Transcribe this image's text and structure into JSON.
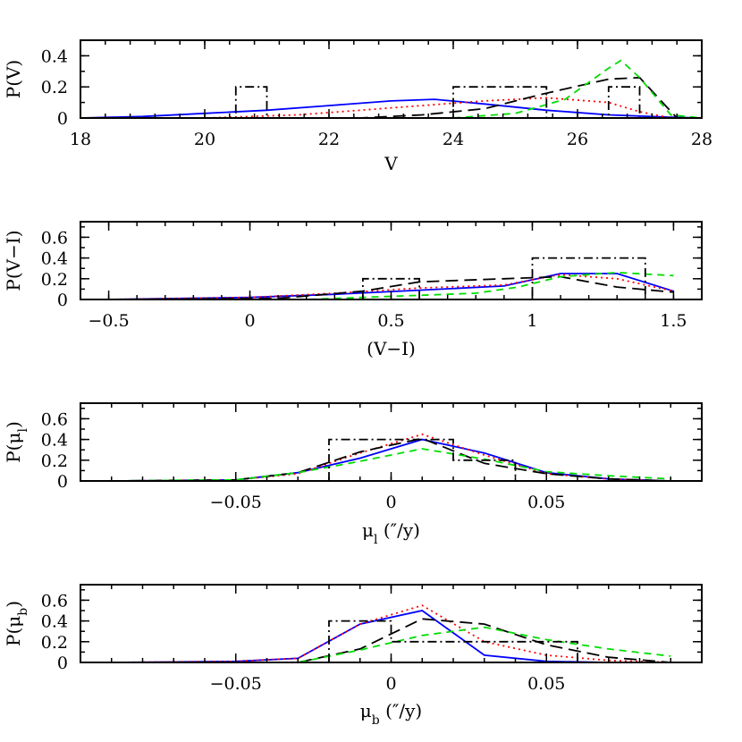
{
  "chart_data": [
    {
      "type": "line",
      "xlabel": "V",
      "ylabel": "P(V)",
      "xlim": [
        18,
        28
      ],
      "ylim": [
        0,
        0.5
      ],
      "xticks": [
        18,
        20,
        22,
        24,
        26,
        28
      ],
      "xtick_labels": [
        "18",
        "20",
        "22",
        "24",
        "26",
        "28"
      ],
      "yticks": [
        0,
        0.2,
        0.4
      ],
      "ytick_labels": [
        "0",
        "0.2",
        "0.4"
      ],
      "series": [
        {
          "color": "#0000ff",
          "dash": "solid",
          "x": [
            18.0,
            19.0,
            20.0,
            21.0,
            22.0,
            23.0,
            23.7,
            24.5,
            25.5,
            26.5,
            27.5,
            28.0
          ],
          "y": [
            0.0,
            0.01,
            0.03,
            0.05,
            0.08,
            0.11,
            0.12,
            0.09,
            0.05,
            0.02,
            0.005,
            0.0
          ]
        },
        {
          "color": "#ff0000",
          "dash": "dotted",
          "x": [
            18.5,
            20.0,
            21.5,
            22.5,
            23.5,
            24.5,
            25.5,
            26.5,
            27.0,
            27.5
          ],
          "y": [
            0.0,
            0.0,
            0.02,
            0.05,
            0.08,
            0.11,
            0.13,
            0.1,
            0.04,
            0.0
          ]
        },
        {
          "color": "#000000",
          "dash": "longdash",
          "x": [
            18.5,
            22.5,
            23.5,
            24.5,
            25.5,
            26.5,
            27.0,
            27.6
          ],
          "y": [
            0.0,
            0.0,
            0.02,
            0.06,
            0.16,
            0.25,
            0.26,
            0.0
          ]
        },
        {
          "color": "#00dd00",
          "dash": "dash",
          "x": [
            24.0,
            25.0,
            25.8,
            26.5,
            26.7,
            27.0,
            27.5,
            28.0
          ],
          "y": [
            0.0,
            0.03,
            0.12,
            0.32,
            0.37,
            0.26,
            0.02,
            0.0
          ]
        },
        {
          "color": "#000000",
          "dash": "dashdot",
          "step": true,
          "x": [
            20.0,
            20.5,
            20.5,
            21.0,
            21.0,
            24.0,
            24.0,
            25.5,
            25.5,
            26.5,
            26.5,
            27.0,
            27.0
          ],
          "y": [
            0.0,
            0.0,
            0.2,
            0.2,
            0.0,
            0.0,
            0.2,
            0.2,
            0.0,
            0.0,
            0.2,
            0.2,
            0.0
          ]
        }
      ]
    },
    {
      "type": "line",
      "xlabel": "(V−I)",
      "ylabel": "P(V−I)",
      "xlim": [
        -0.6,
        1.6
      ],
      "ylim": [
        0,
        0.75
      ],
      "xticks": [
        -0.5,
        0,
        0.5,
        1,
        1.5
      ],
      "xtick_labels": [
        "−0.5",
        "0",
        "0.5",
        "1",
        "1.5"
      ],
      "yticks": [
        0,
        0.2,
        0.4,
        0.6
      ],
      "ytick_labels": [
        "0",
        "0.2",
        "0.4",
        "0.6"
      ],
      "series": [
        {
          "color": "#0000ff",
          "dash": "solid",
          "x": [
            -0.5,
            0.0,
            0.3,
            0.6,
            0.9,
            1.1,
            1.3,
            1.5
          ],
          "y": [
            0.0,
            0.02,
            0.05,
            0.09,
            0.13,
            0.25,
            0.25,
            0.08
          ]
        },
        {
          "color": "#ff0000",
          "dash": "dotted",
          "x": [
            -0.5,
            0.0,
            0.3,
            0.6,
            0.9,
            1.1,
            1.3,
            1.5
          ],
          "y": [
            0.0,
            0.02,
            0.06,
            0.11,
            0.14,
            0.24,
            0.2,
            0.08
          ]
        },
        {
          "color": "#000000",
          "dash": "longdash",
          "x": [
            -0.5,
            0.1,
            0.4,
            0.6,
            0.9,
            1.1,
            1.3,
            1.5
          ],
          "y": [
            0.0,
            0.01,
            0.08,
            0.17,
            0.2,
            0.22,
            0.12,
            0.07
          ]
        },
        {
          "color": "#00dd00",
          "dash": "dash",
          "x": [
            -0.5,
            0.2,
            0.5,
            0.8,
            0.95,
            1.1,
            1.3,
            1.5
          ],
          "y": [
            0.0,
            0.0,
            0.03,
            0.06,
            0.12,
            0.22,
            0.26,
            0.23
          ]
        },
        {
          "color": "#000000",
          "dash": "dashdot",
          "step": true,
          "x": [
            0.4,
            0.4,
            0.6,
            0.6,
            1.0,
            1.0,
            1.4,
            1.4
          ],
          "y": [
            0.0,
            0.2,
            0.2,
            0.0,
            0.0,
            0.4,
            0.4,
            0.0
          ]
        }
      ]
    },
    {
      "type": "line",
      "xlabel": "μ_l (″/y)",
      "ylabel": "P(μ_l)",
      "xlim": [
        -0.1,
        0.1
      ],
      "ylim": [
        0,
        0.75
      ],
      "xticks": [
        -0.05,
        0,
        0.05
      ],
      "xtick_labels": [
        "−0.05",
        "0",
        "0.05"
      ],
      "yticks": [
        0,
        0.2,
        0.4,
        0.6
      ],
      "ytick_labels": [
        "0",
        "0.2",
        "0.4",
        "0.6"
      ],
      "series": [
        {
          "color": "#0000ff",
          "dash": "solid",
          "x": [
            -0.09,
            -0.05,
            -0.03,
            -0.01,
            0.01,
            0.03,
            0.05,
            0.07,
            0.09
          ],
          "y": [
            0.0,
            0.01,
            0.08,
            0.22,
            0.4,
            0.27,
            0.08,
            0.02,
            0.0
          ]
        },
        {
          "color": "#ff0000",
          "dash": "dotted",
          "x": [
            -0.09,
            -0.05,
            -0.03,
            -0.01,
            0.01,
            0.03,
            0.05,
            0.07,
            0.09
          ],
          "y": [
            0.0,
            0.01,
            0.07,
            0.27,
            0.45,
            0.25,
            0.07,
            0.02,
            0.0
          ]
        },
        {
          "color": "#000000",
          "dash": "longdash",
          "x": [
            -0.09,
            -0.05,
            -0.03,
            -0.01,
            0.01,
            0.03,
            0.05,
            0.07,
            0.09
          ],
          "y": [
            0.0,
            0.01,
            0.08,
            0.28,
            0.41,
            0.17,
            0.07,
            0.02,
            0.0
          ]
        },
        {
          "color": "#00dd00",
          "dash": "dash",
          "x": [
            -0.09,
            -0.05,
            -0.03,
            -0.01,
            0.01,
            0.03,
            0.05,
            0.07,
            0.09
          ],
          "y": [
            0.0,
            0.01,
            0.08,
            0.19,
            0.31,
            0.21,
            0.09,
            0.05,
            0.02
          ]
        },
        {
          "color": "#000000",
          "dash": "dashdot",
          "step": true,
          "x": [
            -0.02,
            -0.02,
            0.02,
            0.02,
            0.04,
            0.04
          ],
          "y": [
            0.0,
            0.4,
            0.4,
            0.2,
            0.2,
            0.0
          ]
        }
      ]
    },
    {
      "type": "line",
      "xlabel": "μ_b (″/y)",
      "ylabel": "P(μ_b)",
      "xlim": [
        -0.1,
        0.1
      ],
      "ylim": [
        0,
        0.75
      ],
      "xticks": [
        -0.05,
        0,
        0.05
      ],
      "xtick_labels": [
        "−0.05",
        "0",
        "0.05"
      ],
      "yticks": [
        0,
        0.2,
        0.4,
        0.6
      ],
      "ytick_labels": [
        "0",
        "0.2",
        "0.4",
        "0.6"
      ],
      "series": [
        {
          "color": "#0000ff",
          "dash": "solid",
          "x": [
            -0.09,
            -0.05,
            -0.03,
            -0.01,
            0.01,
            0.03,
            0.05,
            0.07,
            0.09
          ],
          "y": [
            0.0,
            0.01,
            0.04,
            0.37,
            0.5,
            0.07,
            0.01,
            0.0,
            0.0
          ]
        },
        {
          "color": "#ff0000",
          "dash": "dotted",
          "x": [
            -0.09,
            -0.05,
            -0.03,
            -0.01,
            0.01,
            0.03,
            0.05,
            0.07,
            0.09
          ],
          "y": [
            0.0,
            0.01,
            0.04,
            0.37,
            0.55,
            0.2,
            0.07,
            0.02,
            0.0
          ]
        },
        {
          "color": "#000000",
          "dash": "longdash",
          "x": [
            -0.09,
            -0.03,
            -0.01,
            0.01,
            0.03,
            0.05,
            0.07,
            0.09
          ],
          "y": [
            0.0,
            0.0,
            0.13,
            0.42,
            0.37,
            0.17,
            0.05,
            0.0
          ]
        },
        {
          "color": "#00dd00",
          "dash": "dash",
          "x": [
            -0.09,
            -0.03,
            -0.01,
            0.01,
            0.03,
            0.05,
            0.07,
            0.09
          ],
          "y": [
            0.0,
            0.0,
            0.12,
            0.26,
            0.34,
            0.22,
            0.13,
            0.06
          ]
        },
        {
          "color": "#000000",
          "dash": "dashdot",
          "step": true,
          "x": [
            -0.02,
            -0.02,
            0.0,
            0.0,
            0.02,
            0.02,
            0.03,
            0.03,
            0.04,
            0.04,
            0.06,
            0.06
          ],
          "y": [
            0.0,
            0.4,
            0.4,
            0.2,
            0.2,
            0.2,
            0.2,
            0.2,
            0.2,
            0.2,
            0.2,
            0.0
          ]
        }
      ]
    }
  ]
}
